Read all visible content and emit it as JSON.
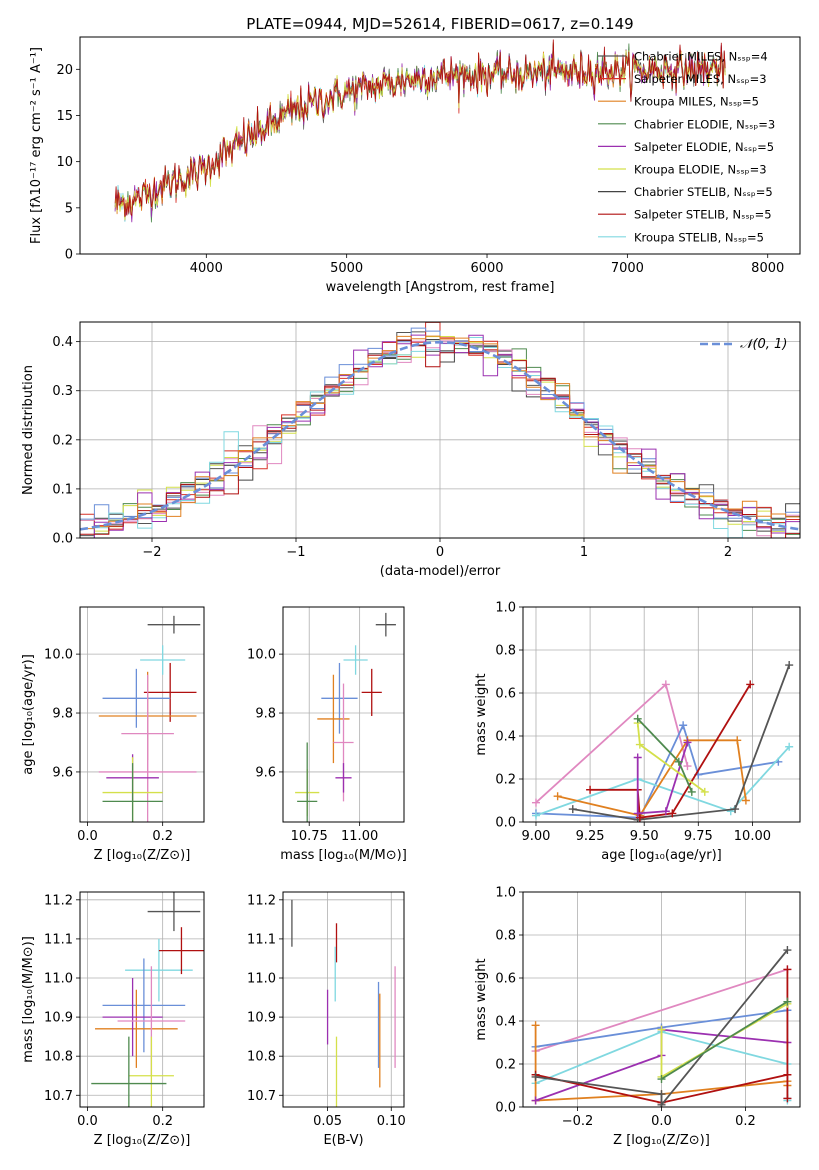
{
  "figure_title": "PLATE=0944, MJD=52614, FIBERID=0617, z=0.149",
  "model_colors": [
    "#555555",
    "#d73027",
    "#e08020",
    "#4f8a4f",
    "#9b30b0",
    "#d4e04a",
    "#444444",
    "#b01010",
    "#80d8e0"
  ],
  "extra_colors": [
    "#6a8fd8",
    "#e088c0"
  ],
  "chart_data": [
    {
      "id": "spectrum",
      "type": "line",
      "title": "PLATE=0944, MJD=52614, FIBERID=0617, z=0.149",
      "xlabel": "wavelength [Angstrom, rest frame]",
      "ylabel": "Flux [fλ10⁻¹⁷ erg cm⁻² s⁻¹ A⁻¹]",
      "xlim": [
        3100,
        8230
      ],
      "ylim": [
        0,
        23.5
      ],
      "xticks": [
        4000,
        5000,
        6000,
        7000,
        8000
      ],
      "yticks": [
        0,
        5,
        10,
        15,
        20
      ],
      "legend_position": "top-right",
      "continuum_x": [
        3350,
        3500,
        3700,
        3900,
        4100,
        4300,
        4500,
        4700,
        5000,
        5300,
        5600,
        6000,
        6500,
        7000,
        7500,
        7700
      ],
      "continuum_y": [
        5.5,
        5.8,
        7.5,
        8.5,
        10.5,
        12.5,
        14.5,
        16.0,
        17.5,
        18.5,
        19.3,
        19.5,
        19.7,
        19.9,
        20.0,
        20.1
      ],
      "series": [
        {
          "name": "Chabrier MILES, N_SSP=4"
        },
        {
          "name": "Salpeter MILES, N_SSP=3"
        },
        {
          "name": "Kroupa MILES, N_SSP=5"
        },
        {
          "name": "Chabrier ELODIE, N_SSP=3"
        },
        {
          "name": "Salpeter ELODIE, N_SSP=5"
        },
        {
          "name": "Kroupa ELODIE, N_SSP=3"
        },
        {
          "name": "Chabrier STELIB, N_SSP=5"
        },
        {
          "name": "Salpeter STELIB, N_SSP=5"
        },
        {
          "name": "Kroupa STELIB, N_SSP=5"
        }
      ]
    },
    {
      "id": "residuals",
      "type": "histogram",
      "xlabel": "(data-model)/error",
      "ylabel": "Normed distribution",
      "xlim": [
        -2.5,
        2.5
      ],
      "ylim": [
        0,
        0.44
      ],
      "xticks": [
        -2,
        -1,
        0,
        1,
        2
      ],
      "yticks": [
        0.0,
        0.1,
        0.2,
        0.3,
        0.4
      ],
      "grid": true,
      "bin_width": 0.1,
      "legend_position": "top-right",
      "reference": {
        "name": "𝒩(0, 1)",
        "mean": 0,
        "sigma": 1
      }
    },
    {
      "id": "age_vs_Z",
      "type": "errorbar",
      "xlabel": "Z [log₁₀(Z/Z⊙)]",
      "ylabel": "age  [log₁₀(age/yr)]",
      "xlim": [
        -0.02,
        0.31
      ],
      "ylim": [
        9.43,
        10.16
      ],
      "xticks": [
        0.0,
        0.2
      ],
      "yticks": [
        9.6,
        9.8,
        10.0
      ],
      "grid": true,
      "points": [
        {
          "x": 0.23,
          "xerr": 0.07,
          "y": 10.1,
          "yerr": 0.03,
          "c": 0
        },
        {
          "x": 0.2,
          "xerr": 0.06,
          "y": 9.98,
          "yerr": 0.05,
          "c": 8
        },
        {
          "x": 0.22,
          "xerr": 0.07,
          "y": 9.87,
          "yerr": 0.1,
          "c": 7
        },
        {
          "x": 0.13,
          "xerr": 0.09,
          "y": 9.85,
          "yerr": 0.1,
          "c": 9
        },
        {
          "x": 0.16,
          "xerr": 0.13,
          "y": 9.79,
          "yerr": 0.15,
          "c": 2
        },
        {
          "x": 0.16,
          "xerr": 0.07,
          "y": 9.73,
          "yerr": 0.2,
          "c": 10
        },
        {
          "x": 0.16,
          "xerr": 0.13,
          "y": 9.6,
          "yerr": 0.2,
          "c": 10
        },
        {
          "x": 0.12,
          "xerr": 0.07,
          "y": 9.58,
          "yerr": 0.08,
          "c": 4
        },
        {
          "x": 0.12,
          "xerr": 0.08,
          "y": 9.53,
          "yerr": 0.12,
          "c": 5
        },
        {
          "x": 0.12,
          "xerr": 0.08,
          "y": 9.5,
          "yerr": 0.13,
          "c": 3
        }
      ]
    },
    {
      "id": "age_vs_mass",
      "type": "errorbar",
      "xlabel": "mass [log₁₀(M/M⊙)]",
      "xlim": [
        10.62,
        11.22
      ],
      "ylim": [
        9.43,
        10.16
      ],
      "xticks": [
        10.75,
        11.0
      ],
      "yticks": [
        9.6,
        9.8,
        10.0
      ],
      "grid": true,
      "points": [
        {
          "x": 11.13,
          "xerr": 0.05,
          "y": 10.1,
          "yerr": 0.04,
          "c": 0
        },
        {
          "x": 10.98,
          "xerr": 0.06,
          "y": 9.98,
          "yerr": 0.05,
          "c": 8
        },
        {
          "x": 11.06,
          "xerr": 0.05,
          "y": 9.87,
          "yerr": 0.08,
          "c": 7
        },
        {
          "x": 10.9,
          "xerr": 0.09,
          "y": 9.85,
          "yerr": 0.12,
          "c": 9
        },
        {
          "x": 10.87,
          "xerr": 0.08,
          "y": 9.78,
          "yerr": 0.15,
          "c": 2
        },
        {
          "x": 10.92,
          "xerr": 0.05,
          "y": 9.7,
          "yerr": 0.2,
          "c": 10
        },
        {
          "x": 10.92,
          "xerr": 0.04,
          "y": 9.58,
          "yerr": 0.05,
          "c": 4
        },
        {
          "x": 10.74,
          "xerr": 0.06,
          "y": 9.53,
          "yerr": 0.08,
          "c": 5
        },
        {
          "x": 10.74,
          "xerr": 0.05,
          "y": 9.5,
          "yerr": 0.2,
          "c": 3
        }
      ]
    },
    {
      "id": "weight_vs_age",
      "type": "line",
      "xlabel": "age  [log₁₀(age/yr)]",
      "ylabel": "mass weight",
      "xlim": [
        8.94,
        10.22
      ],
      "ylim": [
        0,
        1
      ],
      "xticks": [
        9.0,
        9.25,
        9.5,
        9.75,
        10.0
      ],
      "yticks": [
        0.0,
        0.2,
        0.4,
        0.6,
        0.8,
        1.0
      ],
      "grid": true,
      "series": [
        {
          "c": 10,
          "x": [
            9.0,
            9.6,
            9.7
          ],
          "y": [
            0.09,
            0.64,
            0.26
          ]
        },
        {
          "c": 9,
          "x": [
            9.0,
            9.48,
            9.68,
            9.75,
            10.12
          ],
          "y": [
            0.04,
            0.02,
            0.45,
            0.22,
            0.28
          ]
        },
        {
          "c": 8,
          "x": [
            9.0,
            9.47,
            9.9,
            10.17
          ],
          "y": [
            0.03,
            0.2,
            0.05,
            0.35
          ]
        },
        {
          "c": 2,
          "x": [
            9.1,
            9.48,
            9.7,
            9.93,
            9.97
          ],
          "y": [
            0.12,
            0.03,
            0.38,
            0.38,
            0.1
          ]
        },
        {
          "c": 0,
          "x": [
            9.17,
            9.47,
            9.92,
            10.17
          ],
          "y": [
            0.06,
            0.01,
            0.06,
            0.73
          ]
        },
        {
          "c": 7,
          "x": [
            9.25,
            9.47,
            9.48,
            9.63,
            9.99
          ],
          "y": [
            0.15,
            0.15,
            0.02,
            0.04,
            0.64
          ]
        },
        {
          "c": 4,
          "x": [
            9.47,
            9.47,
            9.6,
            9.7
          ],
          "y": [
            0.3,
            0.04,
            0.05,
            0.37
          ]
        },
        {
          "c": 5,
          "x": [
            9.47,
            9.48,
            9.78
          ],
          "y": [
            0.46,
            0.36,
            0.14
          ]
        },
        {
          "c": 3,
          "x": [
            9.47,
            9.66,
            9.72
          ],
          "y": [
            0.48,
            0.28,
            0.14
          ]
        }
      ]
    },
    {
      "id": "mass_vs_Z",
      "type": "errorbar",
      "xlabel": "Z [log₁₀(Z/Z⊙)]",
      "ylabel": "mass [log₁₀(M/M⊙)]",
      "xlim": [
        -0.02,
        0.31
      ],
      "ylim": [
        10.67,
        11.22
      ],
      "xticks": [
        0.0,
        0.2
      ],
      "yticks": [
        10.7,
        10.8,
        10.9,
        11.0,
        11.1,
        11.2
      ],
      "grid": true,
      "points": [
        {
          "x": 0.23,
          "xerr": 0.07,
          "y": 11.17,
          "yerr": 0.05,
          "c": 0
        },
        {
          "x": 0.19,
          "xerr": 0.09,
          "y": 11.02,
          "yerr": 0.08,
          "c": 8
        },
        {
          "x": 0.25,
          "xerr": 0.06,
          "y": 11.07,
          "yerr": 0.06,
          "c": 7
        },
        {
          "x": 0.15,
          "xerr": 0.11,
          "y": 10.93,
          "yerr": 0.12,
          "c": 9
        },
        {
          "x": 0.13,
          "xerr": 0.11,
          "y": 10.87,
          "yerr": 0.1,
          "c": 2
        },
        {
          "x": 0.12,
          "xerr": 0.08,
          "y": 10.9,
          "yerr": 0.1,
          "c": 4
        },
        {
          "x": 0.17,
          "xerr": 0.09,
          "y": 10.89,
          "yerr": 0.14,
          "c": 10
        },
        {
          "x": 0.17,
          "xerr": 0.06,
          "y": 10.75,
          "yerr": 0.1,
          "c": 5
        },
        {
          "x": 0.11,
          "xerr": 0.1,
          "y": 10.73,
          "yerr": 0.12,
          "c": 3
        }
      ]
    },
    {
      "id": "mass_vs_EBV",
      "type": "errorbar",
      "xlabel": "E(B-V)",
      "xlim": [
        0.015,
        0.11
      ],
      "ylim": [
        10.67,
        11.22
      ],
      "xticks": [
        0.05,
        0.1
      ],
      "yticks": [
        10.7,
        10.8,
        10.9,
        11.0,
        11.1,
        11.2
      ],
      "grid": true,
      "points": [
        {
          "x": 0.022,
          "y": 11.14,
          "yerr": 0.06,
          "c": 0
        },
        {
          "x": 0.057,
          "y": 11.09,
          "yerr": 0.05,
          "c": 7
        },
        {
          "x": 0.056,
          "y": 11.01,
          "yerr": 0.07,
          "c": 8
        },
        {
          "x": 0.05,
          "y": 10.9,
          "yerr": 0.07,
          "c": 4
        },
        {
          "x": 0.057,
          "y": 10.76,
          "yerr": 0.09,
          "c": 5
        },
        {
          "x": 0.09,
          "y": 10.88,
          "yerr": 0.11,
          "c": 9
        },
        {
          "x": 0.091,
          "y": 10.84,
          "yerr": 0.12,
          "c": 2
        },
        {
          "x": 0.103,
          "y": 10.9,
          "yerr": 0.13,
          "c": 10
        }
      ]
    },
    {
      "id": "weight_vs_Z",
      "type": "line",
      "xlabel": "Z [log₁₀(Z/Z⊙)]",
      "ylabel": "mass weight",
      "xlim": [
        -0.33,
        0.33
      ],
      "ylim": [
        0,
        1
      ],
      "xticks": [
        -0.2,
        0.0,
        0.2
      ],
      "yticks": [
        0.0,
        0.2,
        0.4,
        0.6,
        0.8,
        1.0
      ],
      "grid": true,
      "series": [
        {
          "c": 10,
          "x": [
            -0.3,
            0.3
          ],
          "y": [
            0.26,
            0.64
          ]
        },
        {
          "c": 9,
          "x": [
            -0.3,
            0.0,
            0.3,
            0.3
          ],
          "y": [
            0.28,
            0.37,
            0.45,
            0.04
          ]
        },
        {
          "c": 8,
          "x": [
            -0.3,
            0.0,
            0.3,
            0.3
          ],
          "y": [
            0.11,
            0.35,
            0.2,
            0.03
          ]
        },
        {
          "c": 2,
          "x": [
            -0.3,
            -0.3,
            0.0,
            0.3,
            0.3
          ],
          "y": [
            0.38,
            0.03,
            0.06,
            0.12,
            0.1
          ]
        },
        {
          "c": 4,
          "x": [
            -0.3,
            0.0,
            0.0,
            0.3
          ],
          "y": [
            0.03,
            0.24,
            0.36,
            0.3
          ]
        },
        {
          "c": 7,
          "x": [
            -0.3,
            0.0,
            0.3,
            0.3,
            0.3
          ],
          "y": [
            0.15,
            0.02,
            0.15,
            0.64,
            0.04
          ]
        },
        {
          "c": 0,
          "x": [
            -0.3,
            0.0,
            0.0,
            0.3
          ],
          "y": [
            0.14,
            0.06,
            0.01,
            0.73
          ]
        },
        {
          "c": 5,
          "x": [
            0.0,
            0.0,
            0.3
          ],
          "y": [
            0.36,
            0.14,
            0.48
          ]
        },
        {
          "c": 3,
          "x": [
            0.0,
            0.3
          ],
          "y": [
            0.13,
            0.49
          ]
        }
      ]
    }
  ]
}
